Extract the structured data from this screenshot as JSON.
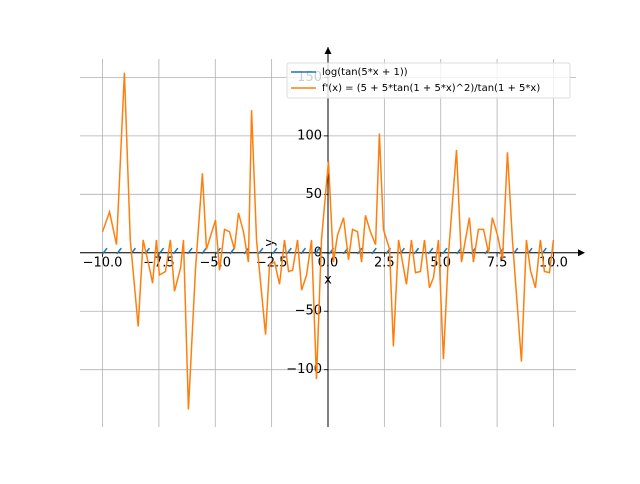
{
  "chart_data": {
    "type": "line",
    "xlabel": "x",
    "ylabel": "y",
    "xlim": [
      -11,
      11
    ],
    "ylim": [
      -149,
      176
    ],
    "xticks": [
      {
        "value": -10,
        "label": "−10.0"
      },
      {
        "value": -7.5,
        "label": "−7.5"
      },
      {
        "value": -5,
        "label": "−5.0"
      },
      {
        "value": -2.5,
        "label": "−2.5"
      },
      {
        "value": 0,
        "label": "0.0"
      },
      {
        "value": 2.5,
        "label": "2.5"
      },
      {
        "value": 5,
        "label": "5.0"
      },
      {
        "value": 7.5,
        "label": "7.5"
      },
      {
        "value": 10,
        "label": "10.0"
      }
    ],
    "yticks": [
      {
        "value": -100,
        "label": "−100"
      },
      {
        "value": -50,
        "label": "−50"
      },
      0,
      50,
      100,
      150
    ],
    "grid": true,
    "legend": "upper right",
    "series": [
      {
        "name": "log(tan(5*x + 1))",
        "color": "#1f77b4",
        "x": [
          -10.0,
          -9.8,
          -9.6,
          -9.37,
          -9.17,
          -8.97,
          -8.74,
          -8.54,
          -8.34,
          -8.12,
          -7.92,
          -7.72,
          -7.49,
          -7.29,
          -7.09,
          -6.86,
          -6.66,
          -6.46,
          -6.23,
          -6.03,
          -5.83,
          -5.6,
          -5.4,
          -5.2,
          -4.97,
          -4.77,
          -4.57,
          -4.35,
          -4.15,
          -3.95,
          -3.72,
          -3.52,
          -3.32,
          -3.09,
          -2.89,
          -2.69,
          -2.46,
          -2.26,
          -2.06,
          -1.83,
          -1.63,
          -1.43,
          -1.2,
          -1.0,
          -0.8,
          -0.58,
          -0.38,
          -0.18,
          0.05,
          0.25,
          0.45,
          0.68,
          0.88,
          1.08,
          1.31,
          1.51,
          1.71,
          1.94,
          2.14,
          2.34,
          2.57,
          2.77,
          2.97,
          3.19,
          3.39,
          3.59,
          3.82,
          4.02,
          4.22,
          4.45,
          4.65,
          4.85,
          5.08,
          5.28,
          5.48,
          5.71,
          5.91,
          6.11,
          6.34,
          6.54,
          6.74,
          6.96,
          7.16,
          7.36,
          7.59,
          7.79,
          7.99,
          8.22,
          8.42,
          8.62,
          8.85,
          9.05,
          9.25,
          9.48,
          9.68,
          9.88
        ],
        "values": [
          -1,
          4,
          null,
          -1,
          4,
          null,
          -1,
          4,
          null,
          -1,
          4,
          null,
          -1,
          4,
          null,
          -1,
          4,
          null,
          -1,
          4,
          null,
          -1,
          4,
          null,
          -1,
          4,
          null,
          -1,
          4,
          null,
          -1,
          4,
          null,
          -1,
          4,
          null,
          -1,
          4,
          null,
          -1,
          4,
          null,
          -1,
          4,
          null,
          -1,
          4,
          null,
          -1,
          4,
          null,
          -1,
          4,
          null,
          -1,
          4,
          null,
          -1,
          4,
          null,
          -1,
          4,
          null,
          -1,
          4,
          null,
          -1,
          4,
          null,
          -1,
          4,
          null,
          -1,
          4,
          null,
          -1,
          4,
          null,
          -1,
          4,
          null,
          -1,
          4,
          null,
          -1,
          4,
          null,
          -1,
          4,
          null,
          -1,
          4,
          null,
          -1,
          4,
          null
        ]
      },
      {
        "name": "f'(x) = (5 + 5*tan(1 + 5*x)^2)/tan(1 + 5*x)",
        "color": "#ff7f0e",
        "x": [
          -10.0,
          -9.69,
          -9.38,
          -9.03,
          -8.77,
          -8.42,
          -8.2,
          -7.92,
          -7.78,
          -7.61,
          -7.48,
          -7.21,
          -6.99,
          -6.81,
          -6.54,
          -6.41,
          -6.19,
          -5.88,
          -5.57,
          -5.39,
          -4.99,
          -4.81,
          -4.59,
          -4.37,
          -4.15,
          -3.97,
          -3.75,
          -3.53,
          -3.39,
          -3.17,
          -2.77,
          -2.59,
          -2.37,
          -2.15,
          -1.93,
          -1.75,
          -1.57,
          -1.35,
          -1.17,
          -0.95,
          -0.73,
          -0.51,
          -0.29,
          0.02,
          0.24,
          0.42,
          0.69,
          0.91,
          1.09,
          1.31,
          1.49,
          1.66,
          1.88,
          2.11,
          2.28,
          2.46,
          2.73,
          2.9,
          3.13,
          3.48,
          3.7,
          3.88,
          4.1,
          4.28,
          4.5,
          4.68,
          4.9,
          5.12,
          5.34,
          5.7,
          5.92,
          6.27,
          6.45,
          6.67,
          6.9,
          7.12,
          7.29,
          7.52,
          7.74,
          7.96,
          8.18,
          8.58,
          8.8,
          8.98,
          9.2,
          9.42,
          9.6,
          9.82,
          10.0
        ],
        "values": [
          18,
          35,
          7,
          154,
          11,
          -63,
          11,
          -13,
          -26,
          11,
          -19,
          -16,
          11,
          -33,
          -13,
          11,
          -134,
          -15,
          68,
          3,
          28,
          -15,
          20,
          18,
          3,
          34,
          18,
          -8,
          122,
          11,
          -70,
          -10,
          -8,
          -27,
          11,
          -16,
          -15,
          11,
          -32,
          -19,
          11,
          -108,
          11,
          78,
          -8,
          15,
          30,
          -6,
          20,
          18,
          -8,
          32,
          18,
          7,
          102,
          20,
          3,
          -80,
          11,
          -27,
          11,
          -17,
          -16,
          11,
          -30,
          -21,
          11,
          -91,
          -2,
          88,
          -8,
          30,
          -8,
          20,
          20,
          0,
          30,
          15,
          -6,
          86,
          11,
          -93,
          11,
          -15,
          -30,
          11,
          -16,
          -17,
          11
        ]
      }
    ]
  }
}
